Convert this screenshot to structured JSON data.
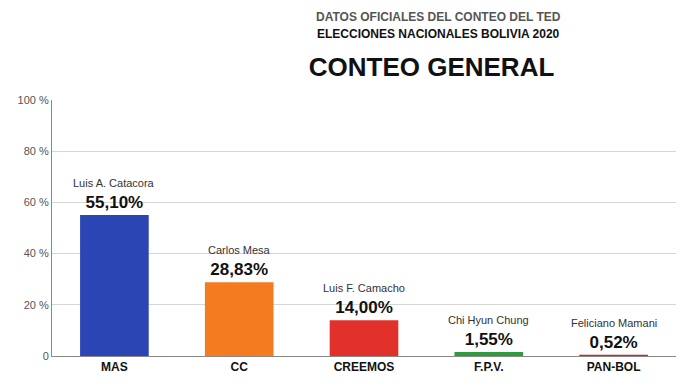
{
  "chart_data": {
    "type": "bar",
    "title": "CONTEO GENERAL",
    "subtitle": [
      "DATOS OFICIALES DEL CONTEO DEL TED",
      "ELECCIONES NACIONALES BOLIVIA 2020"
    ],
    "categories": [
      "MAS",
      "CC",
      "CREEMOS",
      "F.P.V.",
      "PAN-BOL"
    ],
    "candidates": [
      "Luis A. Catacora",
      "Carlos Mesa",
      "Luis F. Camacho",
      "Chi Hyun Chung",
      "Feliciano Mamani"
    ],
    "values": [
      55.1,
      28.83,
      14.0,
      1.55,
      0.52
    ],
    "value_labels": [
      "55,10%",
      "28,83%",
      "14,00%",
      "1,55%",
      "0,52%"
    ],
    "data_labels": true,
    "colors": [
      "#2b45b5",
      "#f47b20",
      "#e2302a",
      "#2f9a3e",
      "#e11b22"
    ],
    "ylim": [
      0,
      100
    ],
    "yticks": [
      0,
      {
        "value": 20,
        "label": "20 %"
      },
      {
        "value": 40,
        "label": "40 %"
      },
      {
        "value": 60,
        "label": "60 %"
      },
      {
        "value": 80,
        "label": "80 %"
      },
      {
        "value": 100,
        "label": "100 %"
      }
    ],
    "grid": true
  }
}
